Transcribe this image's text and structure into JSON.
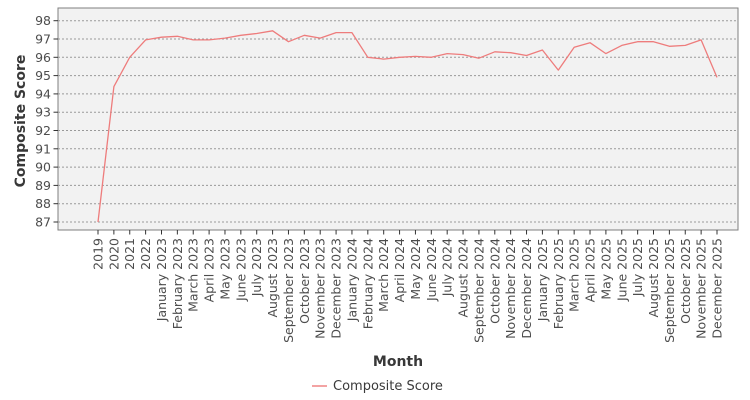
{
  "chart_data": {
    "type": "line",
    "title": "",
    "xlabel": "Month",
    "ylabel": "Composite Score",
    "legend_position": "bottom-center",
    "grid": "horizontal-dashed",
    "categories": [
      "2019",
      "2020",
      "2021",
      "2022",
      "January 2023",
      "February 2023",
      "March 2023",
      "April 2023",
      "May 2023",
      "June 2023",
      "July 2023",
      "August 2023",
      "September 2023",
      "October 2023",
      "November 2023",
      "December 2023",
      "January 2024",
      "February 2024",
      "March 2024",
      "April 2024",
      "May 2024",
      "June 2024",
      "July 2024",
      "August 2024",
      "September 2024",
      "October 2024",
      "November 2024",
      "December 2024",
      "January 2025",
      "February 2025",
      "March 2025",
      "April 2025",
      "May 2025",
      "June 2025",
      "July 2025",
      "August 2025",
      "September 2025",
      "October 2025",
      "November 2025",
      "December 2025"
    ],
    "series": [
      {
        "name": "Composite Score",
        "values": [
          87.0,
          94.4,
          96.0,
          96.95,
          97.1,
          97.15,
          96.95,
          96.95,
          97.05,
          97.2,
          97.3,
          97.45,
          96.85,
          97.2,
          97.05,
          97.35,
          97.35,
          96.0,
          95.9,
          96.0,
          96.05,
          96.0,
          96.2,
          96.15,
          95.95,
          96.3,
          96.25,
          96.1,
          96.4,
          95.3,
          96.55,
          96.8,
          96.2,
          96.65,
          96.85,
          96.85,
          96.6,
          96.65,
          96.95,
          94.9
        ]
      }
    ],
    "yticks": [
      87,
      88,
      89,
      90,
      91,
      92,
      93,
      94,
      95,
      96,
      97,
      98
    ],
    "ylim": [
      86.5,
      98.7
    ]
  },
  "colors": {
    "line": "#ee7c7c",
    "panel_bg": "#f2f2f2",
    "panel_border": "#7f7f7f",
    "grid": "#999999",
    "tick_mark": "#333333",
    "tick_text": "#4d4d4d",
    "title_text": "#383838"
  }
}
